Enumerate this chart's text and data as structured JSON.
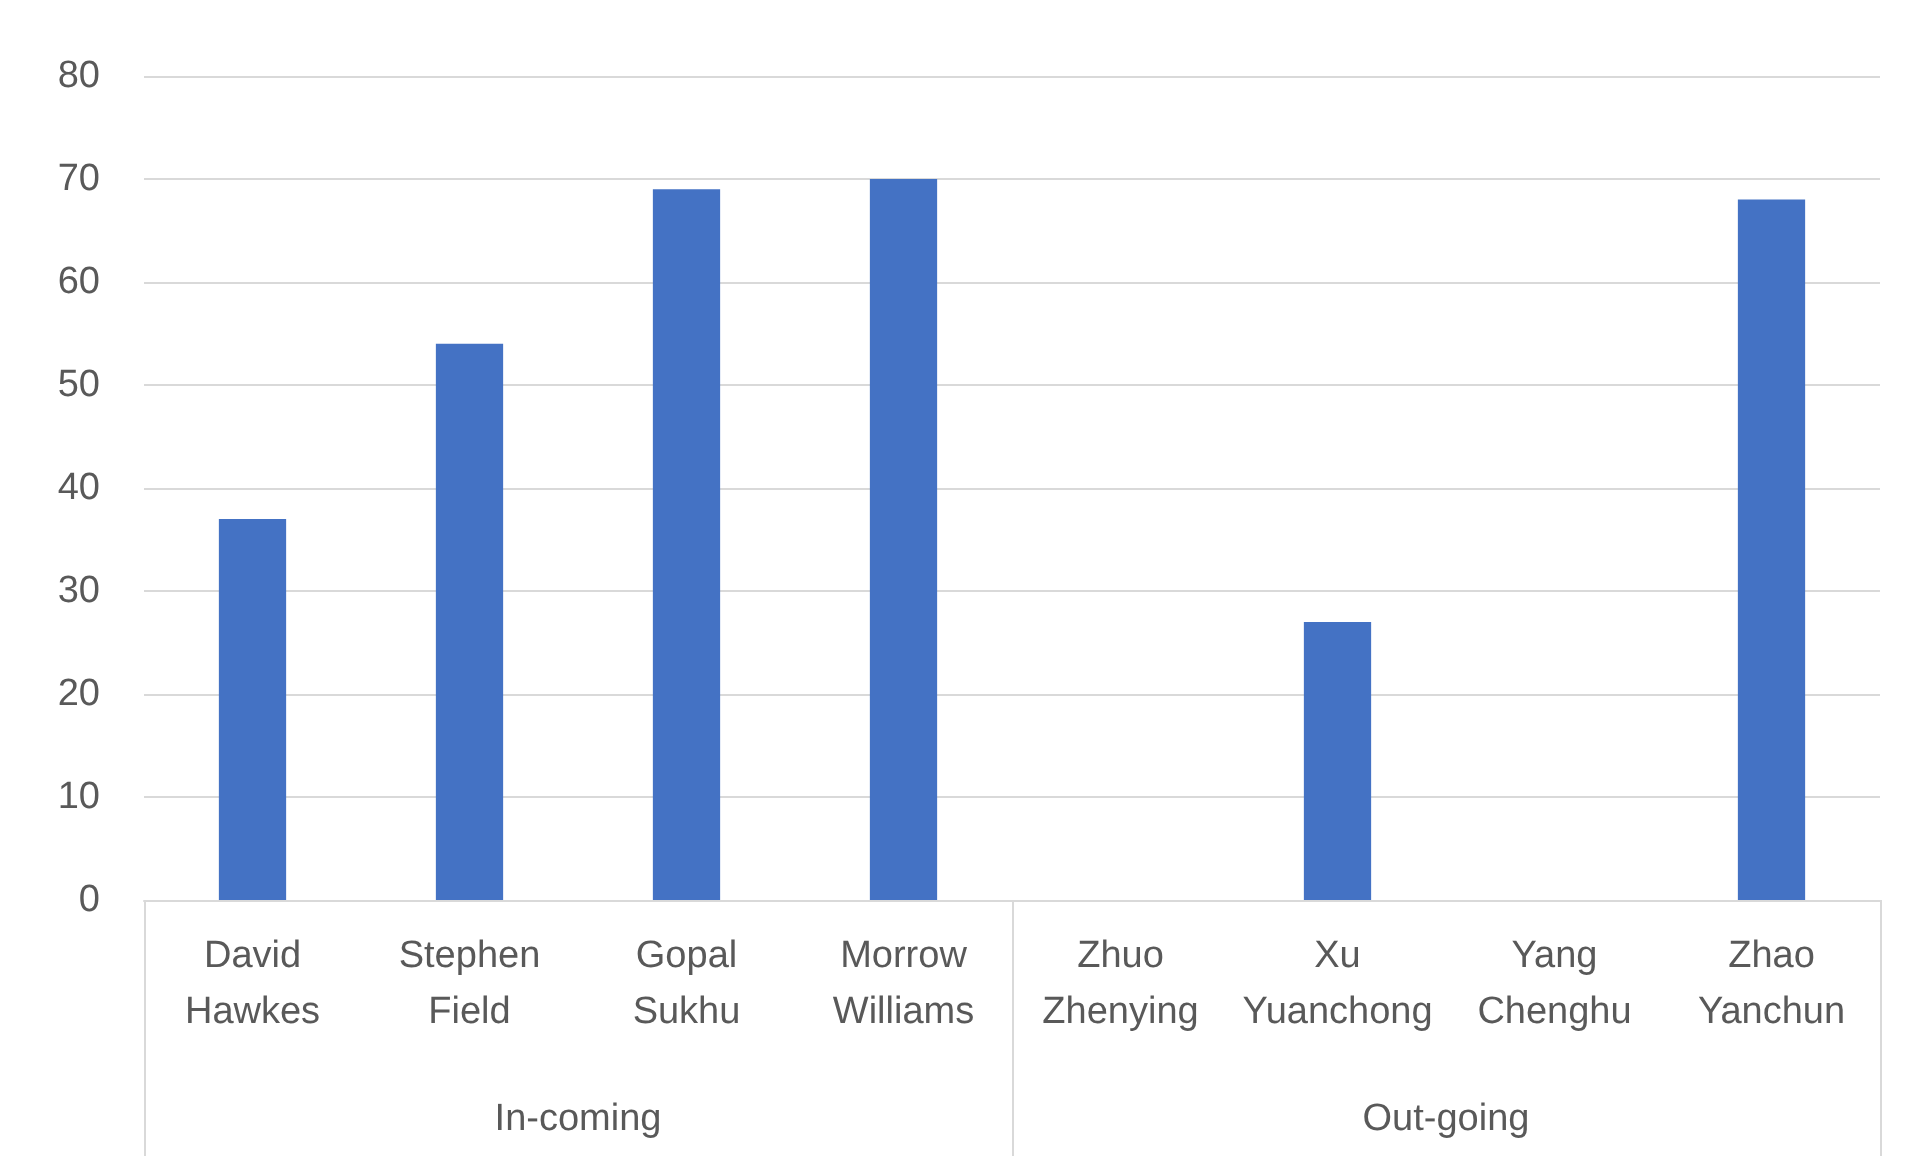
{
  "chart_data": {
    "type": "bar",
    "categories": [
      "David\nHawkes",
      "Stephen\nField",
      "Gopal\nSukhu",
      "Morrow\nWilliams",
      "Zhuo\nZhenying",
      "Xu\nYuanchong",
      "Yang\nChenghu",
      "Zhao\nYanchun"
    ],
    "values": [
      37,
      54,
      69,
      70,
      null,
      27,
      null,
      68
    ],
    "color": "#4472c4",
    "ylim": [
      0,
      80
    ],
    "yticks": [
      0,
      10,
      20,
      30,
      40,
      50,
      60,
      70,
      80
    ],
    "grid": "y",
    "annotations": [
      "In-coming",
      "Out-going"
    ]
  }
}
